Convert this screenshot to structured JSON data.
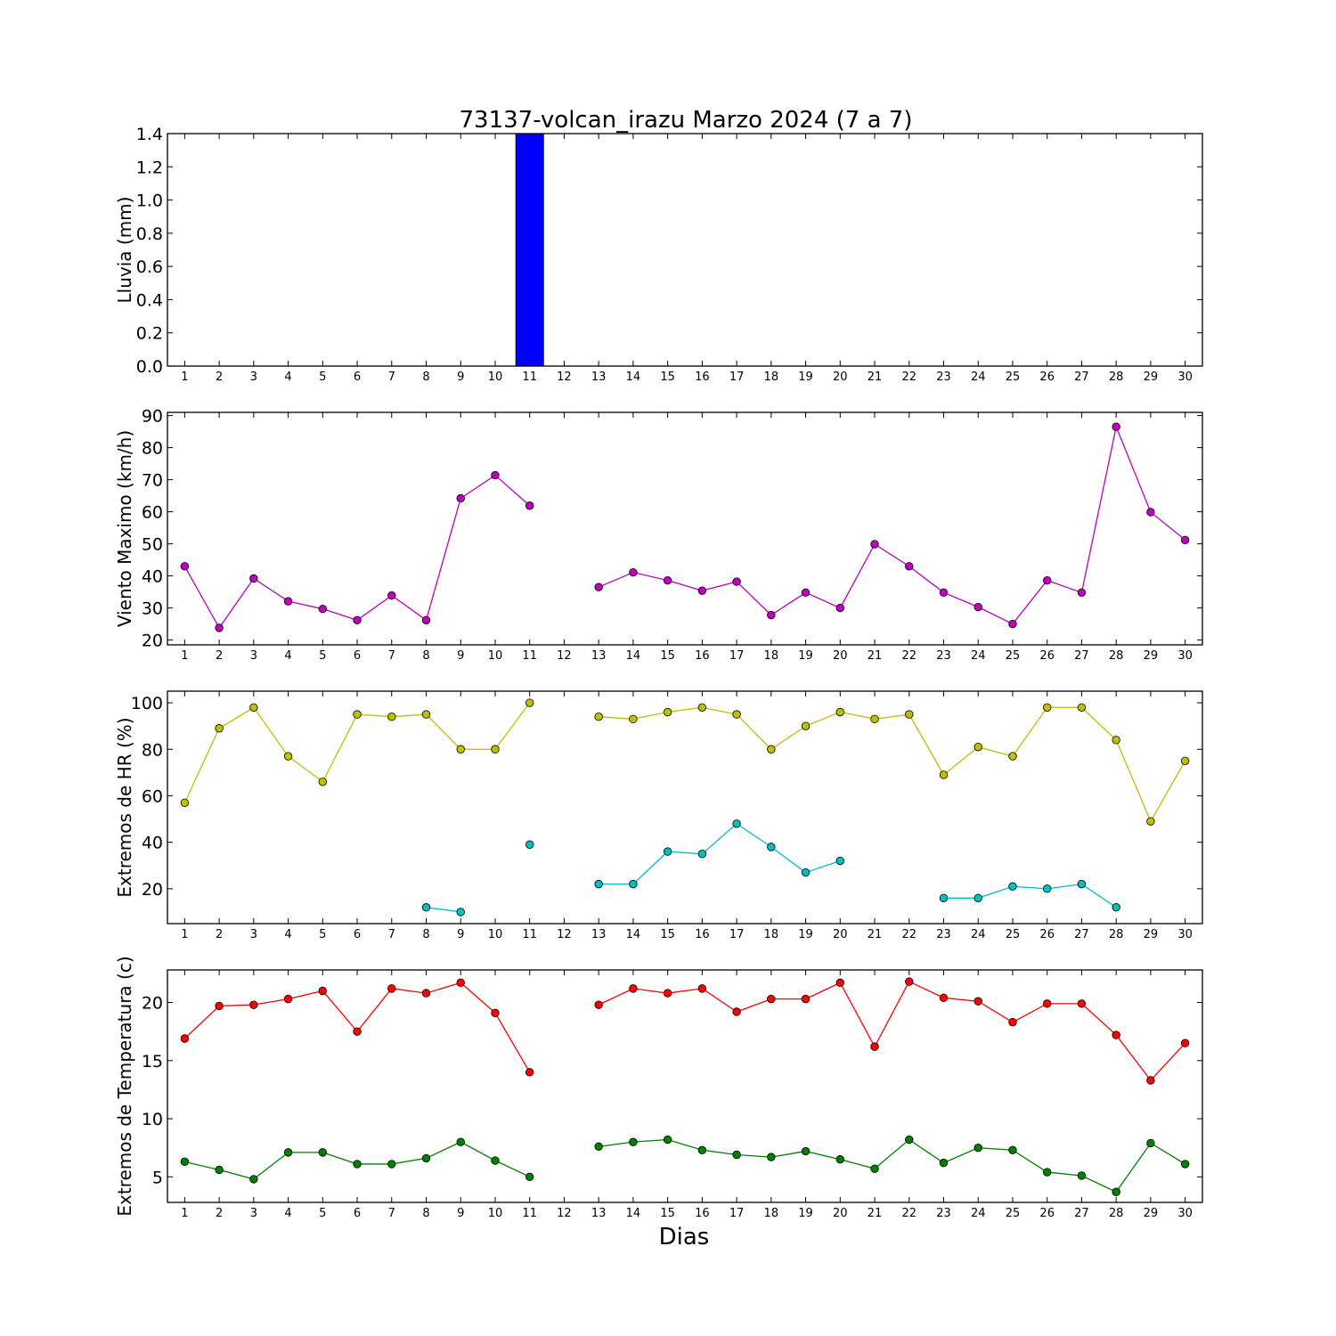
{
  "title": "73137-volcan_irazu Marzo 2024  (7 a 7)",
  "xlabel": "Dias",
  "chart_data": [
    {
      "type": "bar",
      "ylabel": "Lluvia (mm)",
      "ylim": [
        0,
        1.4
      ],
      "yticks": [
        "0.0",
        "0.2",
        "0.4",
        "0.6",
        "0.8",
        "1.0",
        "1.2",
        "1.4"
      ],
      "x": [
        1,
        2,
        3,
        4,
        5,
        6,
        7,
        8,
        9,
        10,
        11,
        12,
        13,
        14,
        15,
        16,
        17,
        18,
        19,
        20,
        21,
        22,
        23,
        24,
        25,
        26,
        27,
        28,
        29,
        30
      ],
      "series": [
        {
          "color": "#0000ff",
          "values": [
            0,
            0,
            0,
            0,
            0,
            0,
            0,
            0,
            0,
            0,
            1.4,
            0,
            0,
            0,
            0,
            0,
            0,
            0,
            0,
            0,
            0,
            0,
            0,
            0,
            0,
            0,
            0,
            0,
            0,
            0
          ]
        }
      ]
    },
    {
      "type": "line",
      "ylabel": "Viento Maximo (km/h)",
      "ylim": [
        18.5,
        91
      ],
      "yticks": [
        "20",
        "30",
        "40",
        "50",
        "60",
        "70",
        "80",
        "90"
      ],
      "x": [
        1,
        2,
        3,
        4,
        5,
        6,
        7,
        8,
        9,
        10,
        11,
        12,
        13,
        14,
        15,
        16,
        17,
        18,
        19,
        20,
        21,
        22,
        23,
        24,
        25,
        26,
        27,
        28,
        29,
        30
      ],
      "series": [
        {
          "color": "#bf00bf",
          "values": [
            43,
            23.8,
            39.2,
            32.1,
            29.7,
            26.2,
            33.9,
            26.2,
            64.2,
            71.4,
            61.9,
            null,
            36.5,
            41.1,
            38.6,
            35.4,
            38.2,
            27.8,
            34.8,
            30,
            49.9,
            43,
            34.8,
            30.3,
            25,
            38.6,
            34.8,
            86.5,
            59.9,
            51.2
          ]
        }
      ]
    },
    {
      "type": "line",
      "ylabel": "Extremos de HR (%)",
      "ylim": [
        5,
        105
      ],
      "yticks": [
        "20",
        "40",
        "60",
        "80",
        "100"
      ],
      "x": [
        1,
        2,
        3,
        4,
        5,
        6,
        7,
        8,
        9,
        10,
        11,
        12,
        13,
        14,
        15,
        16,
        17,
        18,
        19,
        20,
        21,
        22,
        23,
        24,
        25,
        26,
        27,
        28,
        29,
        30
      ],
      "series": [
        {
          "color": "#bfbf00",
          "values": [
            57,
            89,
            98,
            77,
            66,
            95,
            94,
            95,
            80,
            80,
            100,
            null,
            94,
            93,
            96,
            98,
            95,
            80,
            90,
            96,
            93,
            95,
            69,
            81,
            77,
            98,
            98,
            84,
            49,
            75
          ]
        },
        {
          "color": "#00bfbf",
          "values": [
            null,
            null,
            null,
            null,
            null,
            null,
            null,
            12,
            10,
            null,
            39,
            null,
            22,
            22,
            36,
            35,
            48,
            38,
            27,
            32,
            null,
            null,
            16,
            16,
            21,
            20,
            22,
            12,
            null,
            null
          ]
        }
      ]
    },
    {
      "type": "line",
      "ylabel": "Extremos de Temperatura (c)",
      "ylim": [
        2.8,
        22.8
      ],
      "yticks": [
        "5",
        "10",
        "15",
        "20"
      ],
      "x": [
        1,
        2,
        3,
        4,
        5,
        6,
        7,
        8,
        9,
        10,
        11,
        12,
        13,
        14,
        15,
        16,
        17,
        18,
        19,
        20,
        21,
        22,
        23,
        24,
        25,
        26,
        27,
        28,
        29,
        30
      ],
      "series": [
        {
          "color": "#ff0000",
          "values": [
            16.9,
            19.7,
            19.8,
            20.3,
            21,
            17.5,
            21.2,
            20.8,
            21.7,
            19.1,
            14,
            null,
            19.8,
            21.2,
            20.8,
            21.2,
            19.2,
            20.3,
            20.3,
            21.7,
            16.2,
            21.8,
            20.4,
            20.1,
            18.3,
            19.9,
            19.9,
            17.2,
            13.3,
            16.5
          ]
        },
        {
          "color": "#008000",
          "values": [
            6.3,
            5.6,
            4.8,
            7.1,
            7.1,
            6.1,
            6.1,
            6.6,
            8,
            6.4,
            5,
            null,
            7.6,
            8,
            8.2,
            7.3,
            6.9,
            6.7,
            7.2,
            6.5,
            5.7,
            8.2,
            6.2,
            7.5,
            7.3,
            5.4,
            5.1,
            3.7,
            7.9,
            6.1
          ]
        }
      ]
    }
  ]
}
